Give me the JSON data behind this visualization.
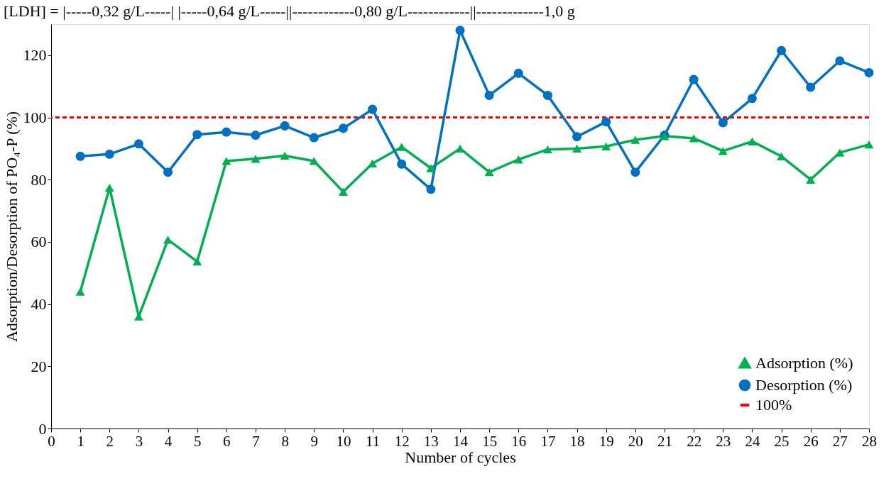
{
  "chart_data": {
    "type": "line",
    "title": "[LDH] = |-----0,32 g/L-----| |-----0,64 g/L-----||------------0,80 g/L------------||-------------1,0 g",
    "xlabel": "Number of cycles",
    "ylabel": "Adsorption/Desorption of PO₄-P (%)",
    "x": [
      1,
      2,
      3,
      4,
      5,
      6,
      7,
      8,
      9,
      10,
      11,
      12,
      13,
      14,
      15,
      16,
      17,
      18,
      19,
      20,
      21,
      22,
      23,
      24,
      25,
      26,
      27,
      28
    ],
    "series": [
      {
        "name": "Adsorption (%)",
        "color": "#00b050",
        "marker": "triangle",
        "values": [
          44,
          77.4,
          36,
          60.7,
          53.7,
          86,
          86.7,
          87.7,
          86,
          76.1,
          85.2,
          90.5,
          83.7,
          90,
          82.4,
          86.5,
          89.7,
          90,
          90.7,
          92.8,
          94,
          93.3,
          89.2,
          92.3,
          87.5,
          80,
          88.7,
          91.3
        ]
      },
      {
        "name": "Desorption (%)",
        "color": "#0070c0",
        "marker": "circle",
        "values": [
          87.5,
          88.2,
          91.5,
          82.4,
          94.5,
          95.3,
          94.3,
          97.3,
          93.5,
          96.5,
          102.6,
          85,
          76.9,
          128,
          107.1,
          114.2,
          107.1,
          93.8,
          98.6,
          82.4,
          94.3,
          112.2,
          98.3,
          106.1,
          121.5,
          109.7,
          118.2,
          114.4
        ]
      }
    ],
    "ref_lines": [
      {
        "axis": "y",
        "value": 100,
        "label": "100%",
        "color": "#ff0000",
        "line_style": "dashed"
      }
    ],
    "xlim": [
      0,
      28
    ],
    "xticks": [
      0,
      1,
      2,
      3,
      4,
      5,
      6,
      7,
      8,
      9,
      10,
      11,
      12,
      13,
      14,
      15,
      16,
      17,
      18,
      19,
      20,
      21,
      22,
      23,
      24,
      25,
      26,
      27,
      28
    ],
    "ylim": [
      0,
      130
    ],
    "yticks": [
      0,
      20,
      40,
      60,
      80,
      100,
      120
    ],
    "grid": false,
    "legend": "bottom right",
    "line_style": "solid"
  }
}
